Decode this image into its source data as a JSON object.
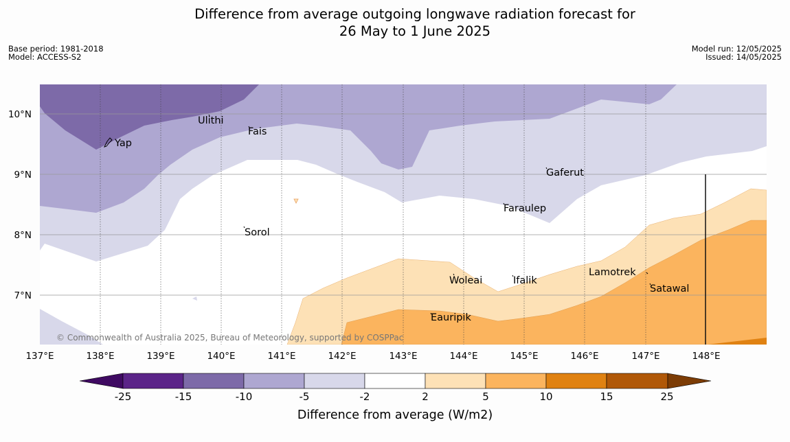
{
  "title_line1": "Difference from average outgoing longwave radiation forecast for",
  "title_line2": "26 May to 1 June 2025",
  "base_period": "Base period: 1981-2018",
  "model": "Model: ACCESS-S2",
  "model_run": "Model run: 12/05/2025",
  "issued": "Issued: 14/05/2025",
  "copyright": "© Commonwealth of Australia 2025, Bureau of Meteorology, supported by COSPPac",
  "lon_labels": [
    "137°E",
    "138°E",
    "139°E",
    "140°E",
    "141°E",
    "142°E",
    "143°E",
    "144°E",
    "145°E",
    "146°E",
    "147°E",
    "148°E"
  ],
  "lat_labels": [
    "10°N",
    "9°N",
    "8°N",
    "7°N"
  ],
  "places": [
    {
      "name": "Yap"
    },
    {
      "name": "Ulithi"
    },
    {
      "name": "Fais"
    },
    {
      "name": "Gaferut"
    },
    {
      "name": "Faraulep"
    },
    {
      "name": "Sorol"
    },
    {
      "name": "Lamotrek"
    },
    {
      "name": "Woleai"
    },
    {
      "name": "Ifalik"
    },
    {
      "name": "Satawal"
    },
    {
      "name": "Eauripik"
    }
  ],
  "colorbar": {
    "label": "Difference from average (W/m2)",
    "ticks": [
      "-25",
      "-15",
      "-10",
      "-5",
      "-2",
      "2",
      "5",
      "10",
      "15",
      "25"
    ],
    "colors": [
      "#3f0a62",
      "#5b2488",
      "#7d6aa8",
      "#aea7d1",
      "#d8d8ea",
      "#ffffff",
      "#fde1b6",
      "#fbb45e",
      "#e08212",
      "#b05808",
      "#7c3c05"
    ]
  }
}
